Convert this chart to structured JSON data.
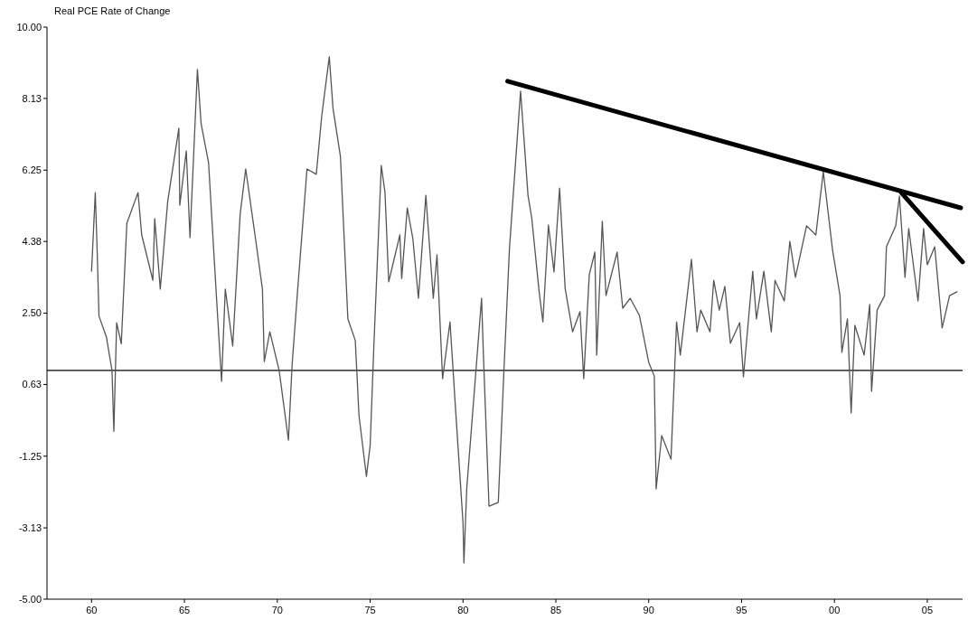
{
  "chart_data": {
    "type": "line",
    "title": "Real PCE Rate of Change",
    "xlim": [
      1957.6,
      2006.9
    ],
    "ylim": [
      -5,
      10
    ],
    "xticks": [
      {
        "value": 1960,
        "label": "60"
      },
      {
        "value": 1965,
        "label": "65"
      },
      {
        "value": 1970,
        "label": "70"
      },
      {
        "value": 1975,
        "label": "75"
      },
      {
        "value": 1980,
        "label": "80"
      },
      {
        "value": 1985,
        "label": "85"
      },
      {
        "value": 1990,
        "label": "90"
      },
      {
        "value": 1995,
        "label": "95"
      },
      {
        "value": 2000,
        "label": "00"
      },
      {
        "value": 2005,
        "label": "05"
      }
    ],
    "yticks": [
      {
        "value": 10,
        "label": "10.00"
      },
      {
        "value": 8.13,
        "label": "8.13"
      },
      {
        "value": 6.25,
        "label": "6.25"
      },
      {
        "value": 4.38,
        "label": "4.38"
      },
      {
        "value": 2.5,
        "label": "2.50"
      },
      {
        "value": 0.63,
        "label": "0.63"
      },
      {
        "value": -1.25,
        "label": "-1.25"
      },
      {
        "value": -3.13,
        "label": "-3.13"
      },
      {
        "value": -5,
        "label": "-5.00"
      }
    ],
    "grid": false,
    "ref_lines": [
      {
        "axis": "y",
        "value": 1.0,
        "color": "#000000"
      }
    ],
    "series": [
      {
        "color": "#555555",
        "x": [
          1960.0,
          1960.2,
          1960.3,
          1960.4,
          1960.8,
          1961.1,
          1961.2,
          1961.35,
          1961.6,
          1961.9,
          1962.5,
          1962.7,
          1963.3,
          1963.4,
          1963.7,
          1964.1,
          1964.7,
          1964.75,
          1965.1,
          1965.3,
          1965.7,
          1965.9,
          1966.3,
          1966.7,
          1967.0,
          1967.2,
          1967.6,
          1968.0,
          1968.3,
          1968.8,
          1969.2,
          1969.3,
          1969.6,
          1970.1,
          1970.6,
          1970.8,
          1971.1,
          1971.6,
          1972.1,
          1972.4,
          1972.8,
          1973.0,
          1973.4,
          1973.8,
          1974.2,
          1974.4,
          1974.8,
          1975.0,
          1975.2,
          1975.6,
          1975.8,
          1976.0,
          1976.6,
          1976.7,
          1977.0,
          1977.3,
          1977.6,
          1978.0,
          1978.4,
          1978.6,
          1978.9,
          1979.3,
          1979.6,
          1980.0,
          1980.05,
          1980.2,
          1981.0,
          1981.1,
          1981.4,
          1981.9,
          1982.2,
          1982.5,
          1983.1,
          1983.5,
          1983.7,
          1984.1,
          1984.3,
          1984.6,
          1984.9,
          1985.2,
          1985.5,
          1985.9,
          1986.3,
          1986.5,
          1986.8,
          1987.1,
          1987.2,
          1987.5,
          1987.7,
          1988.3,
          1988.6,
          1989.0,
          1989.5,
          1990.0,
          1990.3,
          1990.4,
          1990.7,
          1991.2,
          1991.5,
          1991.7,
          1992.3,
          1992.6,
          1992.8,
          1993.3,
          1993.5,
          1993.8,
          1994.1,
          1994.4,
          1994.9,
          1995.1,
          1995.6,
          1995.8,
          1996.2,
          1996.6,
          1996.8,
          1997.3,
          1997.6,
          1997.9,
          1998.5,
          1999.0,
          1999.4,
          1999.9,
          2000.3,
          2000.4,
          2000.7,
          2000.9,
          2001.1,
          2001.6,
          2001.9,
          2002.0,
          2002.3,
          2002.7,
          2002.8,
          2003.3,
          2003.5,
          2003.8,
          2004.0,
          2004.5,
          2004.8,
          2005.0,
          2005.4,
          2005.8,
          2006.2,
          2006.6
        ],
        "values": [
          3.6,
          5.66,
          4.15,
          2.42,
          1.87,
          1.0,
          -0.6,
          2.25,
          1.7,
          4.86,
          5.66,
          4.55,
          3.36,
          4.98,
          3.13,
          5.43,
          7.35,
          5.33,
          6.75,
          4.48,
          8.89,
          7.46,
          6.44,
          3.13,
          0.71,
          3.13,
          1.64,
          5.09,
          6.28,
          4.55,
          3.13,
          1.23,
          2.01,
          1.0,
          -0.83,
          1.16,
          3.13,
          6.28,
          6.14,
          7.7,
          9.22,
          7.87,
          6.61,
          2.35,
          1.78,
          -0.19,
          -1.78,
          -0.97,
          1.64,
          6.37,
          5.66,
          3.32,
          4.55,
          3.41,
          5.26,
          4.45,
          2.89,
          5.59,
          2.89,
          4.03,
          0.78,
          2.27,
          -0.02,
          -2.99,
          -4.05,
          -2.11,
          2.89,
          1.4,
          -2.56,
          -2.46,
          0.95,
          4.19,
          8.32,
          5.59,
          5.0,
          3.06,
          2.27,
          4.81,
          3.58,
          5.78,
          3.15,
          2.01,
          2.54,
          0.78,
          3.51,
          4.1,
          1.4,
          4.91,
          2.96,
          4.1,
          2.63,
          2.89,
          2.44,
          1.21,
          0.85,
          -2.11,
          -0.71,
          -1.33,
          2.27,
          1.4,
          3.91,
          2.01,
          2.58,
          2.01,
          3.36,
          2.58,
          3.2,
          1.71,
          2.25,
          0.83,
          3.6,
          2.35,
          3.6,
          2.01,
          3.36,
          2.82,
          4.38,
          3.44,
          4.79,
          4.55,
          6.21,
          4.15,
          2.96,
          1.47,
          2.35,
          -0.12,
          2.18,
          1.4,
          2.73,
          0.45,
          2.58,
          2.96,
          4.24,
          4.79,
          5.57,
          3.44,
          4.72,
          2.82,
          4.72,
          3.77,
          4.24,
          2.11,
          2.96,
          3.06
        ]
      },
      {
        "color": "#000000",
        "x": [
          1982.4,
          2006.8
        ],
        "values": [
          8.58,
          5.26
        ]
      },
      {
        "color": "#000000",
        "x": [
          2003.6,
          2006.9
        ],
        "values": [
          5.66,
          3.84
        ]
      }
    ]
  }
}
